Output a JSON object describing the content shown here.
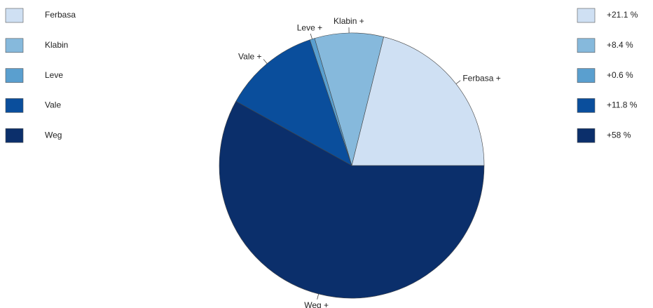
{
  "chart_data": {
    "type": "pie",
    "categories": [
      "Ferbasa",
      "Klabin",
      "Leve",
      "Vale",
      "Weg"
    ],
    "slice_labels": [
      "Ferbasa +",
      "Klabin +",
      "Leve +",
      "Vale +",
      "Weg +"
    ],
    "values": [
      21.1,
      8.4,
      0.6,
      11.8,
      58
    ],
    "value_labels": [
      "+21.1 %",
      "+8.4 %",
      "+0.6 %",
      "+11.8 %",
      "+58 %"
    ],
    "colors": [
      "#cfe0f3",
      "#86b9dc",
      "#5a9fcf",
      "#0a4e9c",
      "#0b2f6b"
    ]
  }
}
